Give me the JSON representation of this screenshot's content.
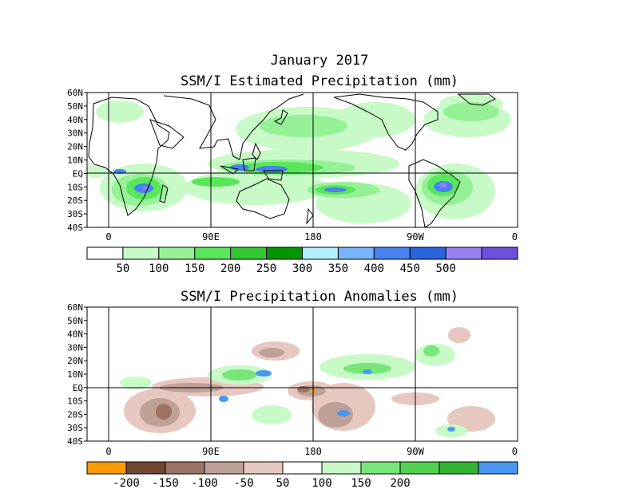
{
  "titles": {
    "month": "January 2017",
    "top_map": "SSM/I Estimated Precipitation (mm)",
    "bottom_map": "SSM/I Precipitation Anomalies (mm)"
  },
  "lat_labels": [
    "60N",
    "50N",
    "40N",
    "30N",
    "20N",
    "10N",
    "EQ",
    "10S",
    "20S",
    "30S",
    "40S"
  ],
  "lon_labels": [
    "0",
    "90E",
    "180",
    "90W",
    "0"
  ],
  "top_colorbar": {
    "colors": [
      "#ffffff",
      "#c8fac8",
      "#96f096",
      "#5ae65a",
      "#32c832",
      "#009600",
      "#b4f0fa",
      "#78b4fa",
      "#4682f0",
      "#2864dc",
      "#9682f0",
      "#6e50dc"
    ],
    "labels": [
      "50",
      "100",
      "150",
      "200",
      "250",
      "300",
      "350",
      "400",
      "450",
      "500"
    ]
  },
  "bottom_colorbar": {
    "colors": [
      "#ff9b00",
      "#6e4632",
      "#9b7364",
      "#bea096",
      "#e6c8c0",
      "#ffffff",
      "#c8fac8",
      "#78e678",
      "#50d250",
      "#32b432",
      "#4b96f0"
    ],
    "labels": [
      "-200",
      "-150",
      "-100",
      "-50",
      "50",
      "100",
      "150",
      "200"
    ]
  }
}
